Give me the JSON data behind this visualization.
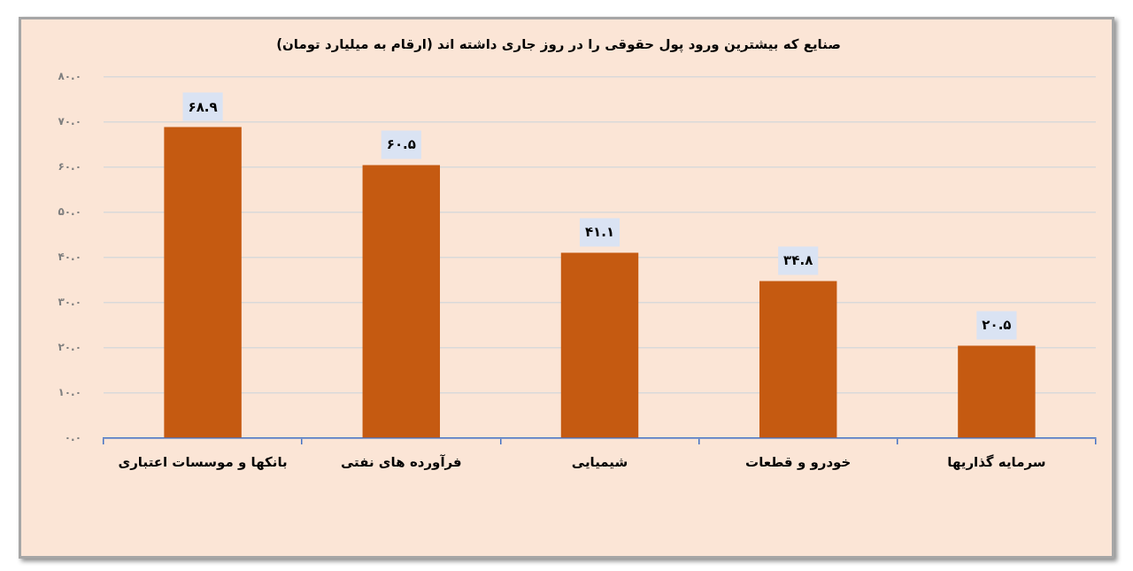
{
  "chart_data": {
    "type": "bar",
    "title": "صنایع که بیشترین ورود پول حقوقی را در روز جاری داشته اند (ارقام به میلیارد تومان)",
    "categories": [
      "بانکها و موسسات اعتباری",
      "فرآورده های نفتی",
      "شیمیایی",
      "خودرو و قطعات",
      "سرمایه گذاریها"
    ],
    "values": [
      68.9,
      60.5,
      41.1,
      34.8,
      20.5
    ],
    "value_labels": [
      "۶۸.۹",
      "۶۰.۵",
      "۴۱.۱",
      "۳۴.۸",
      "۲۰.۵"
    ],
    "color": "#c55a11",
    "ylim": [
      0,
      80
    ],
    "yticks": [
      {
        "value": 0,
        "label": "۰.۰"
      },
      {
        "value": 10,
        "label": "۱۰.۰"
      },
      {
        "value": 20,
        "label": "۲۰.۰"
      },
      {
        "value": 30,
        "label": "۳۰.۰"
      },
      {
        "value": 40,
        "label": "۴۰.۰"
      },
      {
        "value": 50,
        "label": "۵۰.۰"
      },
      {
        "value": 60,
        "label": "۶۰.۰"
      },
      {
        "value": 70,
        "label": "۷۰.۰"
      },
      {
        "value": 80,
        "label": "۸۰.۰"
      }
    ],
    "grid": "y"
  }
}
